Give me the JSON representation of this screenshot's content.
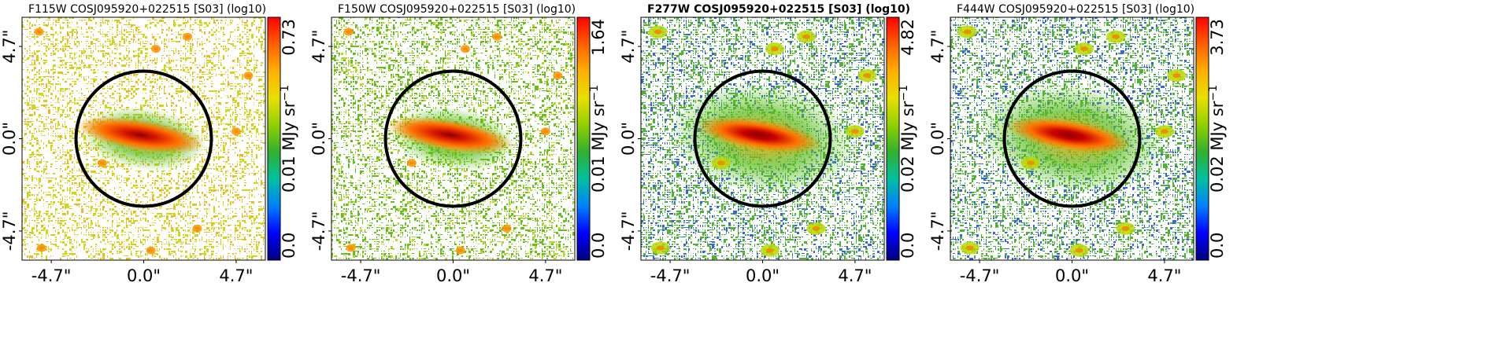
{
  "panels": [
    {
      "id": "f115w",
      "title": "F115W COSJ095920+022515 [S03] (log10)",
      "bold": false,
      "cbar": {
        "max_label": "0.73",
        "mid_label": "0.01 MJy sr",
        "min_label": "0.0"
      },
      "noise_color": "#c8d400",
      "noise_alt": "#f0a800",
      "bg": "#ffffff",
      "density": 0.45,
      "core": "#d81800",
      "halo": "#ff8800",
      "xticks": [
        "-4.7\"",
        "0.0\"",
        "4.7\""
      ],
      "yticks": [
        "4.7\"",
        "0.0\"",
        "-4.7\""
      ]
    },
    {
      "id": "f150w",
      "title": "F150W COSJ095920+022515 [S03] (log10)",
      "bold": false,
      "cbar": {
        "max_label": "1.64",
        "mid_label": "0.01 MJy sr",
        "min_label": "0.0"
      },
      "noise_color": "#58b800",
      "noise_alt": "#a8d000",
      "bg": "#ffffff",
      "density": 0.5,
      "core": "#d81800",
      "halo": "#ff9800",
      "xticks": [
        "-4.7\"",
        "0.0\"",
        "4.7\""
      ],
      "yticks": [
        "4.7\"",
        "0.0\"",
        "-4.7\""
      ]
    },
    {
      "id": "f277w",
      "title": "F277W COSJ095920+022515 [S03] (log10)",
      "bold": true,
      "cbar": {
        "max_label": "4.82",
        "mid_label": "0.02 MJy sr",
        "min_label": "0.0"
      },
      "noise_color": "#3aaa20",
      "noise_alt": "#1848d8",
      "bg": "#ffffff",
      "density": 0.62,
      "core": "#c80000",
      "halo": "#f0a000",
      "xticks": [
        "-4.7\"",
        "0.0\"",
        "4.7\""
      ],
      "yticks": [
        "4.7\"",
        "0.0\"",
        "-4.7\""
      ]
    },
    {
      "id": "f444w",
      "title": "F444W COSJ095920+022515 [S03] (log10)",
      "bold": false,
      "cbar": {
        "max_label": "3.73",
        "mid_label": "0.02 MJy sr",
        "min_label": "0.0"
      },
      "noise_color": "#3aaa20",
      "noise_alt": "#1848d8",
      "bg": "#ffffff",
      "density": 0.58,
      "core": "#c80000",
      "halo": "#f0a000",
      "xticks": [
        "-4.7\"",
        "0.0\"",
        "4.7\""
      ],
      "yticks": [
        "4.7\"",
        "0.0\"",
        "-4.7\""
      ]
    }
  ],
  "cbar_unit_sup": "−1",
  "colormap": [
    "#00007f",
    "#0000ff",
    "#0080ff",
    "#00c0a0",
    "#30b030",
    "#90d000",
    "#e8e000",
    "#ffb000",
    "#ff6000",
    "#ff0000"
  ]
}
